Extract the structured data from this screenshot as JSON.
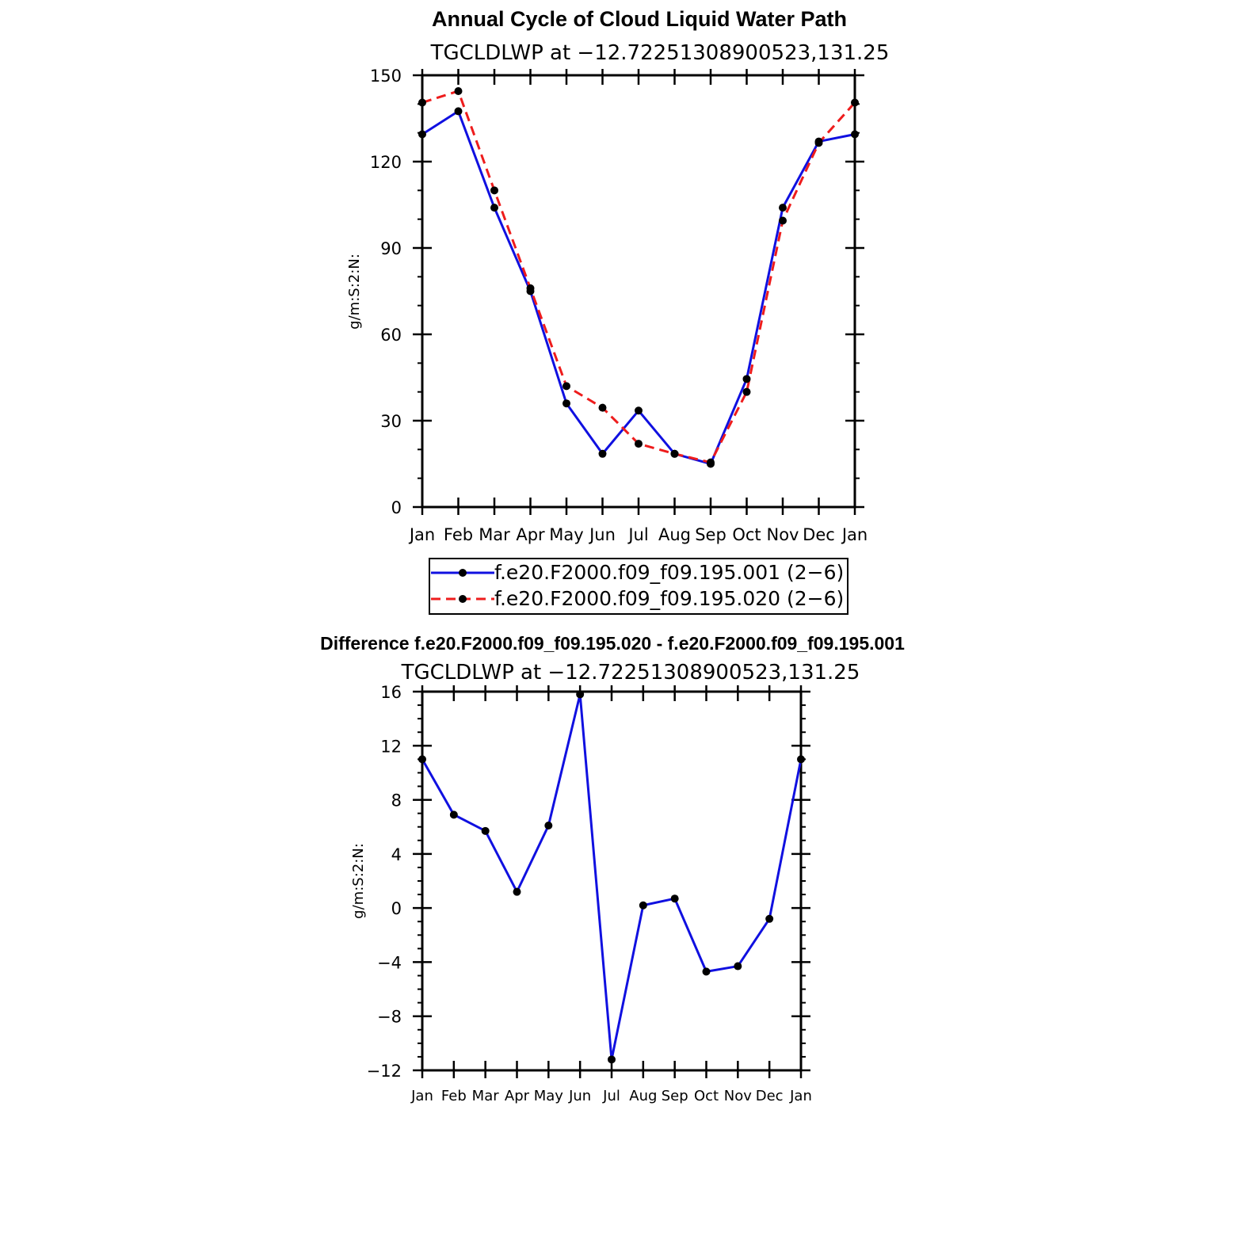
{
  "chart_data": [
    {
      "type": "line",
      "title": "Annual Cycle of Cloud Liquid Water Path",
      "subtitle": "TGCLDLWP  at  −12.72251308900523,131.25",
      "xlabel": "",
      "ylabel": "g/m:S:2:N:",
      "categories": [
        "Jan",
        "Feb",
        "Mar",
        "Apr",
        "May",
        "Jun",
        "Jul",
        "Aug",
        "Sep",
        "Oct",
        "Nov",
        "Dec",
        "Jan"
      ],
      "yticks": [
        0,
        30,
        60,
        90,
        120,
        150
      ],
      "ytick_labels": [
        "0",
        "30",
        "60",
        "90",
        "120",
        "150"
      ],
      "ylim": [
        0,
        150
      ],
      "minor_yticks": [
        10,
        20,
        40,
        50,
        70,
        80,
        100,
        110,
        130,
        140
      ],
      "grid": false,
      "legend_position": "bottom",
      "series": [
        {
          "name": "f.e20.F2000.f09_f09.195.001 (2−6)",
          "color": "#1010e0",
          "dash": "solid",
          "values": [
            129.5,
            137.5,
            104.0,
            75.0,
            36.0,
            18.5,
            33.5,
            18.5,
            15.0,
            44.5,
            104.0,
            127.0,
            129.5
          ]
        },
        {
          "name": "f.e20.F2000.f09_f09.195.020 (2−6)",
          "color": "#ee1c1c",
          "dash": "dashed",
          "values": [
            140.5,
            144.5,
            110.0,
            76.0,
            42.0,
            34.5,
            22.0,
            18.5,
            15.5,
            40.0,
            99.5,
            126.5,
            140.5
          ]
        }
      ]
    },
    {
      "type": "line",
      "title": "Difference f.e20.F2000.f09_f09.195.020 - f.e20.F2000.f09_f09.195.001",
      "subtitle": "TGCLDLWP  at  −12.72251308900523,131.25",
      "xlabel": "",
      "ylabel": "g/m:S:2:N:",
      "categories": [
        "Jan",
        "Feb",
        "Mar",
        "Apr",
        "May",
        "Jun",
        "Jul",
        "Aug",
        "Sep",
        "Oct",
        "Nov",
        "Dec",
        "Jan"
      ],
      "yticks": [
        -12,
        -8,
        -4,
        0,
        4,
        8,
        12,
        16
      ],
      "ytick_labels": [
        "−12",
        "−8",
        "−4",
        "0",
        "4",
        "8",
        "12",
        "16"
      ],
      "ylim": [
        -12,
        16
      ],
      "minor_yticks": [
        -11,
        -10,
        -9,
        -7,
        -6,
        -5,
        -3,
        -2,
        -1,
        1,
        2,
        3,
        5,
        6,
        7,
        9,
        10,
        11,
        13,
        14,
        15
      ],
      "grid": false,
      "series": [
        {
          "name": "difference",
          "color": "#1010e0",
          "dash": "solid",
          "values": [
            11.0,
            6.9,
            5.7,
            1.2,
            6.1,
            15.8,
            -11.2,
            0.2,
            0.7,
            -4.7,
            -4.3,
            -0.8,
            11.0
          ]
        }
      ]
    }
  ]
}
